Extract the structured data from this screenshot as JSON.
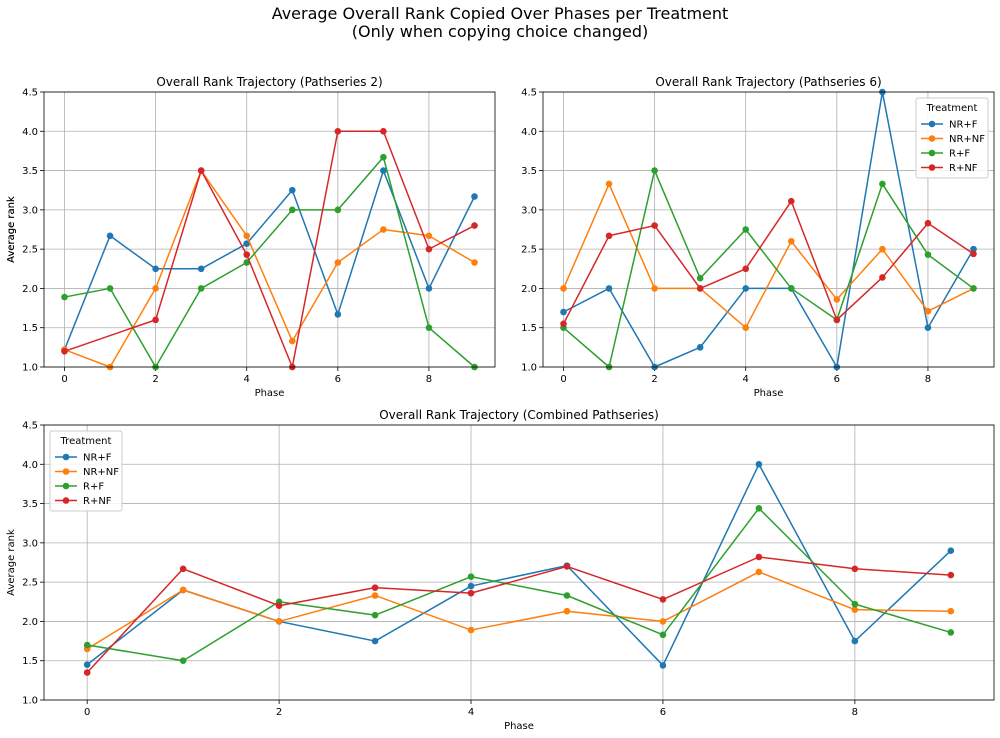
{
  "figure": {
    "suptitle_line1": "Average Overall Rank Copied Over Phases per Treatment",
    "suptitle_line2": "(Only when copying choice changed)"
  },
  "colors": {
    "NR+F": "#1f77b4",
    "NR+NF": "#ff7f0e",
    "R+F": "#2ca02c",
    "R+NF": "#d62728"
  },
  "chart_data": [
    {
      "type": "line",
      "title": "Overall Rank Trajectory (Pathseries 2)",
      "xlabel": "Phase",
      "ylabel": "Average rank",
      "xlim": [
        -0.45,
        9.45
      ],
      "ylim": [
        1.0,
        4.5
      ],
      "xticks": [
        0,
        2,
        4,
        6,
        8
      ],
      "yticks": [
        1.0,
        1.5,
        2.0,
        2.5,
        3.0,
        3.5,
        4.0,
        4.5
      ],
      "grid": true,
      "legend": null,
      "series": [
        {
          "name": "NR+F",
          "x": [
            0,
            1,
            2,
            3,
            4,
            5,
            6,
            7,
            8,
            9
          ],
          "y": [
            1.22,
            2.67,
            2.25,
            2.25,
            2.57,
            3.25,
            1.67,
            3.5,
            2.0,
            3.17
          ]
        },
        {
          "name": "NR+NF",
          "x": [
            0,
            1,
            2,
            3,
            4,
            5,
            6,
            7,
            8,
            9
          ],
          "y": [
            1.22,
            1.0,
            2.0,
            3.5,
            2.67,
            1.33,
            2.33,
            2.75,
            2.67,
            2.33
          ]
        },
        {
          "name": "R+F",
          "x": [
            0,
            1,
            2,
            3,
            4,
            5,
            6,
            7,
            8,
            9
          ],
          "y": [
            1.89,
            2.0,
            1.0,
            2.0,
            2.33,
            3.0,
            3.0,
            3.67,
            1.5,
            1.0
          ]
        },
        {
          "name": "R+NF",
          "x": [
            0,
            2,
            3,
            4,
            5,
            6,
            7,
            8,
            9
          ],
          "y": [
            1.2,
            1.6,
            3.5,
            2.43,
            1.0,
            4.0,
            4.0,
            2.5,
            2.8
          ]
        }
      ]
    },
    {
      "type": "line",
      "title": "Overall Rank Trajectory (Pathseries 6)",
      "xlabel": "Phase",
      "ylabel": "Average rank",
      "xlim": [
        -0.45,
        9.45
      ],
      "ylim": [
        1.0,
        4.5
      ],
      "xticks": [
        0,
        2,
        4,
        6,
        8
      ],
      "yticks": [
        1.0,
        1.5,
        2.0,
        2.5,
        3.0,
        3.5,
        4.0,
        4.5
      ],
      "grid": true,
      "legend": "top-right",
      "legend_title": "Treatment",
      "series": [
        {
          "name": "NR+F",
          "x": [
            0,
            1,
            2,
            3,
            4,
            5,
            6,
            7,
            8,
            9
          ],
          "y": [
            1.7,
            2.0,
            1.0,
            1.25,
            2.0,
            2.0,
            1.0,
            4.5,
            1.5,
            2.5
          ]
        },
        {
          "name": "NR+NF",
          "x": [
            0,
            1,
            2,
            3,
            4,
            5,
            6,
            7,
            8,
            9
          ],
          "y": [
            2.0,
            3.33,
            2.0,
            2.0,
            1.5,
            2.6,
            1.86,
            2.5,
            1.71,
            2.0
          ]
        },
        {
          "name": "R+F",
          "x": [
            0,
            1,
            2,
            3,
            4,
            5,
            6,
            7,
            8,
            9
          ],
          "y": [
            1.5,
            1.0,
            3.5,
            2.13,
            2.75,
            2.0,
            1.6,
            3.33,
            2.43,
            2.0
          ]
        },
        {
          "name": "R+NF",
          "x": [
            0,
            1,
            2,
            3,
            4,
            5,
            6,
            7,
            8,
            9
          ],
          "y": [
            1.55,
            2.67,
            2.8,
            2.0,
            2.25,
            3.11,
            1.6,
            2.14,
            2.83,
            2.44
          ]
        }
      ]
    },
    {
      "type": "line",
      "title": "Overall Rank Trajectory (Combined Pathseries)",
      "xlabel": "Phase",
      "ylabel": "Average rank",
      "xlim": [
        -0.45,
        9.45
      ],
      "ylim": [
        1.0,
        4.5
      ],
      "xticks": [
        0,
        2,
        4,
        6,
        8
      ],
      "yticks": [
        1.0,
        1.5,
        2.0,
        2.5,
        3.0,
        3.5,
        4.0,
        4.5
      ],
      "grid": true,
      "legend": "top-left",
      "legend_title": "Treatment",
      "series": [
        {
          "name": "NR+F",
          "x": [
            0,
            1,
            2,
            3,
            4,
            5,
            6,
            7,
            8,
            9
          ],
          "y": [
            1.45,
            2.4,
            2.0,
            1.75,
            2.45,
            2.71,
            1.44,
            4.0,
            1.75,
            2.9
          ]
        },
        {
          "name": "NR+NF",
          "x": [
            0,
            1,
            2,
            3,
            4,
            5,
            6,
            7,
            8,
            9
          ],
          "y": [
            1.65,
            2.4,
            2.0,
            2.33,
            1.89,
            2.13,
            2.0,
            2.63,
            2.15,
            2.13
          ]
        },
        {
          "name": "R+F",
          "x": [
            0,
            1,
            2,
            3,
            4,
            5,
            6,
            7,
            8,
            9
          ],
          "y": [
            1.7,
            1.5,
            2.25,
            2.08,
            2.57,
            2.33,
            1.83,
            3.44,
            2.22,
            1.86
          ]
        },
        {
          "name": "R+NF",
          "x": [
            0,
            1,
            2,
            3,
            4,
            5,
            6,
            7,
            8,
            9
          ],
          "y": [
            1.35,
            2.67,
            2.2,
            2.43,
            2.36,
            2.7,
            2.28,
            2.82,
            2.67,
            2.59
          ]
        }
      ]
    }
  ]
}
